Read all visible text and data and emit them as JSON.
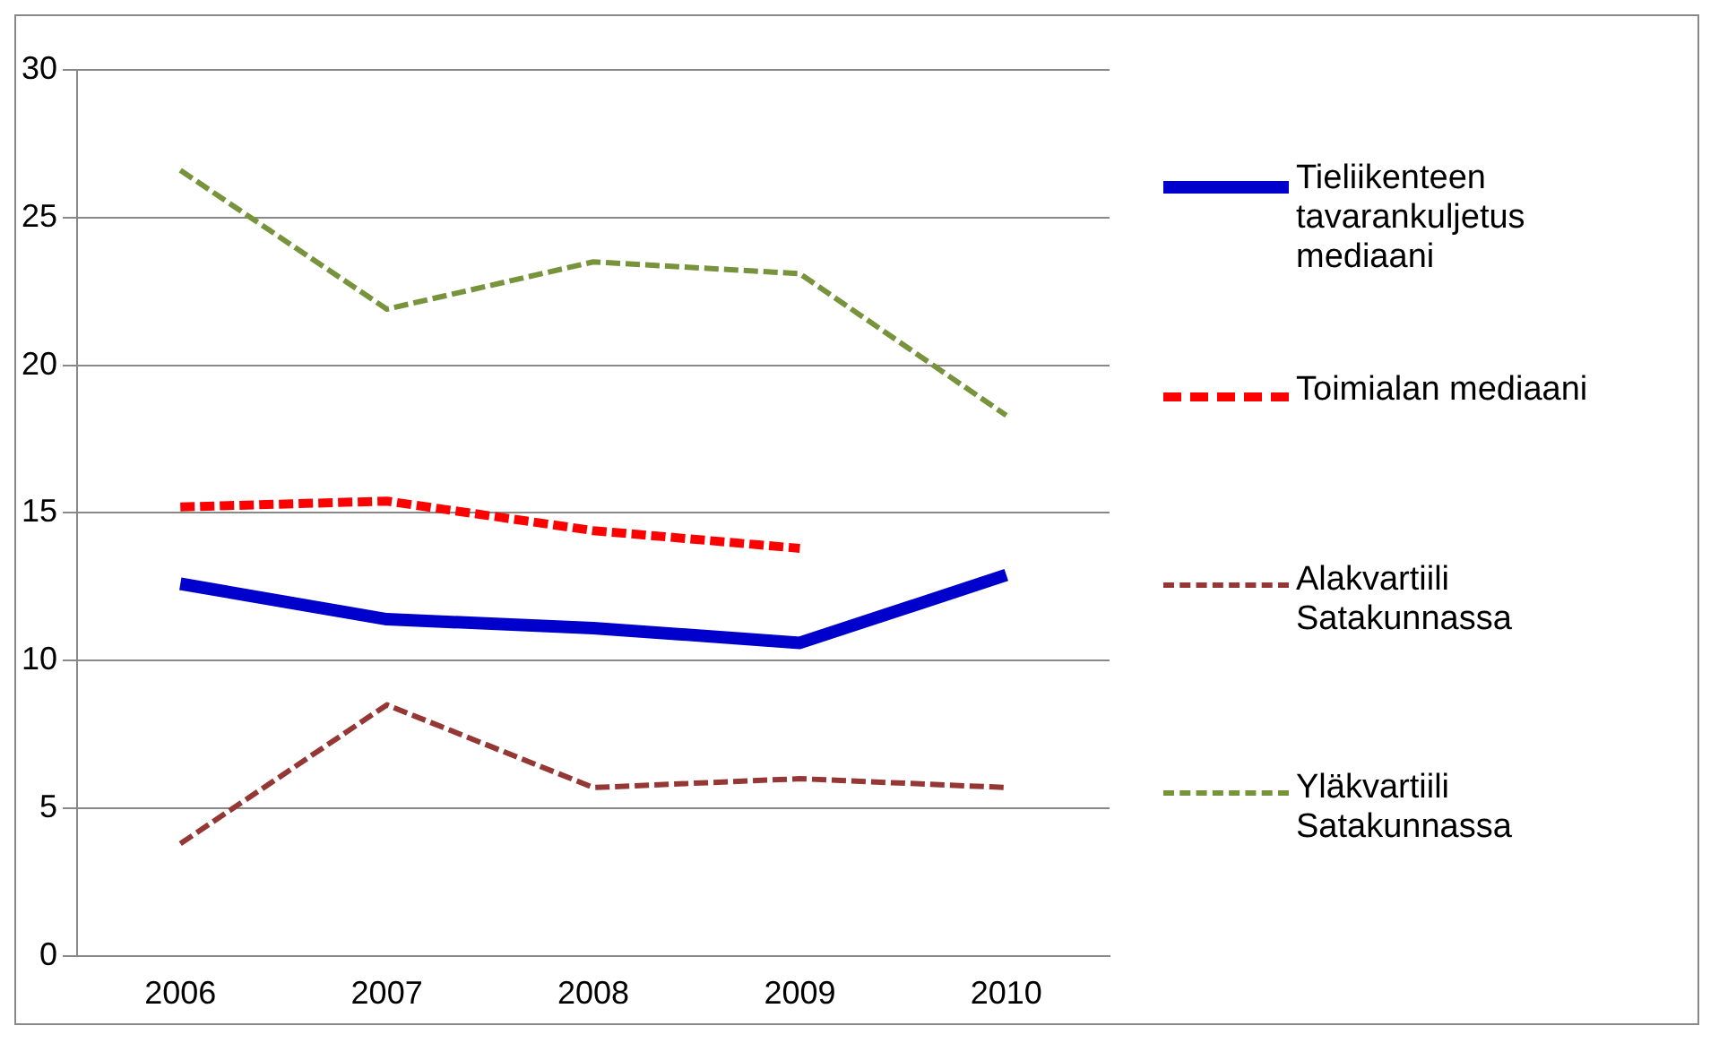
{
  "chart_data": {
    "type": "line",
    "categories": [
      "2006",
      "2007",
      "2008",
      "2009",
      "2010"
    ],
    "series": [
      {
        "name": "Tieliikenteen tavarankuljetus mediaani",
        "color": "#0000cc",
        "values": [
          12.6,
          11.4,
          11.1,
          10.6,
          12.9
        ],
        "line_style": "solid"
      },
      {
        "name": "Toimialan mediaani",
        "color": "#ff0000",
        "values": [
          15.2,
          15.4,
          14.4,
          13.8,
          null
        ],
        "line_style": "dashed"
      },
      {
        "name": "Alakvartiili Satakunnassa",
        "color": "#953735",
        "values": [
          3.8,
          8.5,
          5.7,
          6.0,
          5.7
        ],
        "line_style": "dashed"
      },
      {
        "name": "Yläkvartiili Satakunnassa",
        "color": "#77933c",
        "values": [
          26.6,
          21.9,
          23.5,
          23.1,
          18.3
        ],
        "line_style": "dashed"
      }
    ],
    "ylim": [
      0,
      30
    ],
    "yticks": [
      0,
      5,
      10,
      15,
      20,
      25,
      30
    ],
    "grid": "y",
    "legend": "right",
    "marker": "none"
  }
}
